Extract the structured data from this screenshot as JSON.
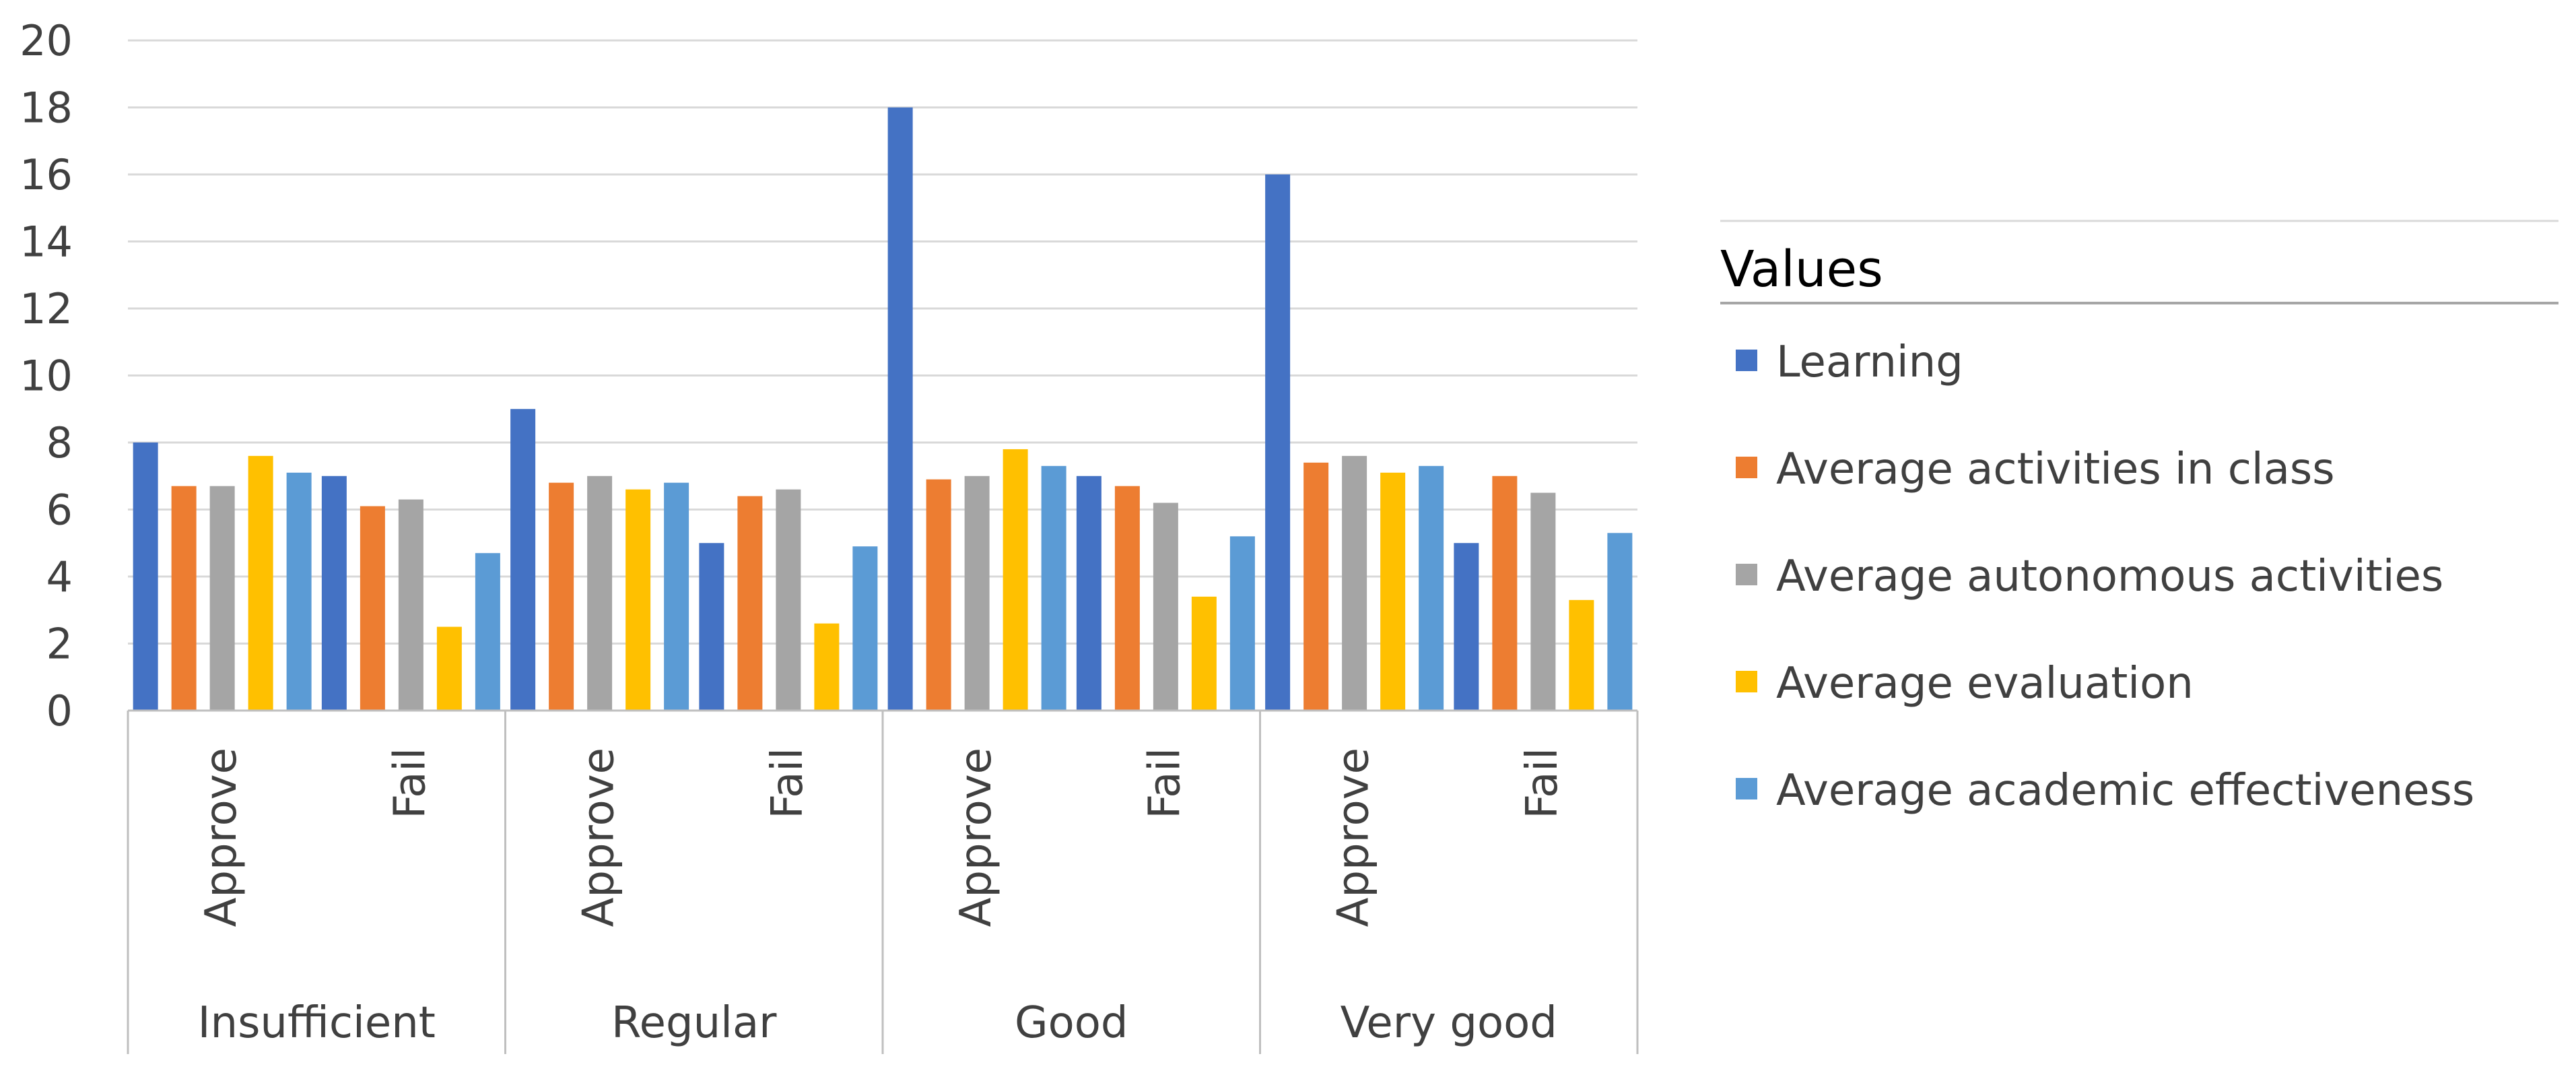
{
  "chart_data": {
    "type": "bar",
    "title": "",
    "xlabel": "",
    "ylabel": "",
    "ylim": [
      0,
      20
    ],
    "yticks": [
      0,
      2,
      4,
      6,
      8,
      10,
      12,
      14,
      16,
      18,
      20
    ],
    "grid": true,
    "groups": [
      "Insufficient",
      "Regular",
      "Good",
      "Very good"
    ],
    "subcategories": [
      "Approve",
      "Fail"
    ],
    "categories": [
      "Insufficient / Approve",
      "Insufficient / Fail",
      "Regular / Approve",
      "Regular / Fail",
      "Good / Approve",
      "Good / Fail",
      "Very good / Approve",
      "Very good / Fail"
    ],
    "legend": {
      "title": "Values",
      "position": "right"
    },
    "series": [
      {
        "name": "Learning",
        "color": "#4472C4",
        "values": [
          8,
          7,
          9,
          5,
          18,
          7,
          16,
          5
        ]
      },
      {
        "name": "Average activities in class",
        "color": "#ED7D31",
        "values": [
          6.7,
          6.1,
          6.8,
          6.4,
          6.9,
          6.7,
          7.4,
          7.0
        ]
      },
      {
        "name": "Average autonomous activities",
        "color": "#A5A5A5",
        "values": [
          6.7,
          6.3,
          7.0,
          6.6,
          7.0,
          6.2,
          7.6,
          6.5
        ]
      },
      {
        "name": "Average evaluation",
        "color": "#FFC000",
        "values": [
          7.6,
          2.5,
          6.6,
          2.6,
          7.8,
          3.4,
          7.1,
          3.3
        ]
      },
      {
        "name": "Average academic effectiveness",
        "color": "#5B9BD5",
        "values": [
          7.1,
          4.7,
          6.8,
          4.9,
          7.3,
          5.2,
          7.3,
          5.3
        ]
      }
    ]
  }
}
